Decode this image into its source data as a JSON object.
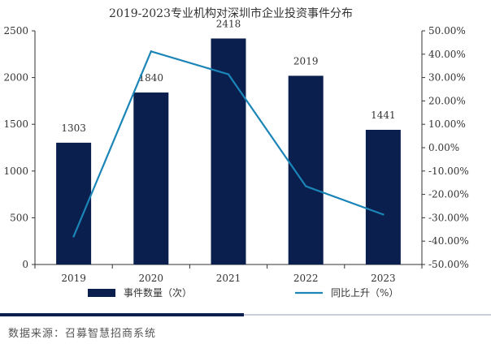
{
  "chart_data": {
    "type": "bar",
    "title": "2019-2023专业机构对深圳市企业投资事件分布",
    "categories": [
      "2019",
      "2020",
      "2021",
      "2022",
      "2023"
    ],
    "series": [
      {
        "name": "事件数量（次）",
        "kind": "bar",
        "axis": "left",
        "color": "#0b1f4f",
        "values": [
          1303,
          1840,
          2418,
          2019,
          1441
        ]
      },
      {
        "name": "同比上升（%）",
        "kind": "line",
        "axis": "right",
        "color": "#1b85b8",
        "values": [
          -38.0,
          41.2,
          31.4,
          -16.5,
          -28.6
        ]
      }
    ],
    "y_left": {
      "min": 0,
      "max": 2500,
      "step": 500,
      "ticks": [
        "0",
        "500",
        "1000",
        "1500",
        "2000",
        "2500"
      ]
    },
    "y_right": {
      "min": -50,
      "max": 50,
      "step": 10,
      "ticks": [
        "-50.00%",
        "-40.00%",
        "-30.00%",
        "-20.00%",
        "-10.00%",
        "0.00%",
        "10.00%",
        "20.00%",
        "30.00%",
        "40.00%",
        "50.00%"
      ]
    },
    "legend_position": "bottom",
    "grid": false
  },
  "footer": {
    "source": "数据来源：召募智慧招商系统"
  }
}
